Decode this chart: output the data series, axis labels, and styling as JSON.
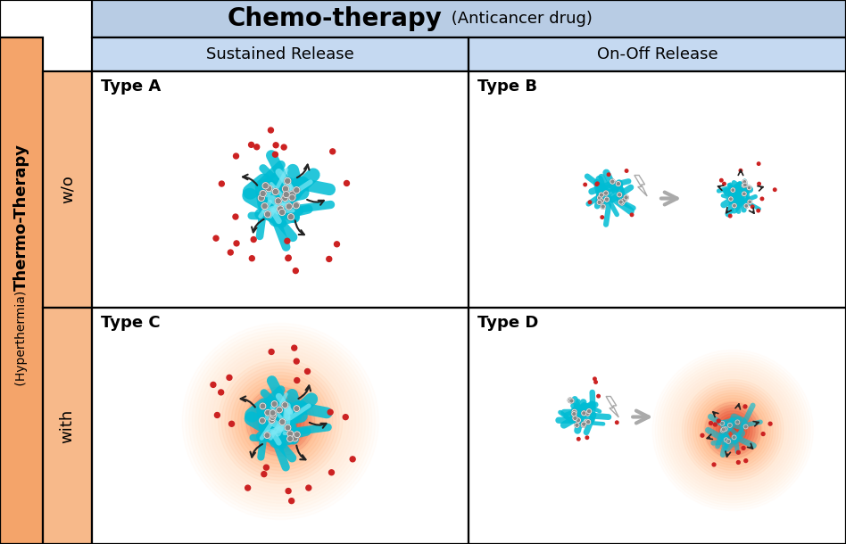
{
  "title_chemo": "Chemo-therapy",
  "title_chemo_sub": " (Anticancer drug)",
  "header_col1": "Sustained Release",
  "header_col2": "On-Off Release",
  "row1_label": "w/o",
  "row2_label": "with",
  "left_label_main": "Thermo-Therapy",
  "left_label_sub": " (Hyperthermia)",
  "type_labels": [
    "Type A",
    "Type B",
    "Type C",
    "Type D"
  ],
  "header_bg": "#b8cce4",
  "subheader_bg": "#c5d9f1",
  "left_col_bg": "#f4a460",
  "left_col_bg2": "#f4b07a",
  "fiber_color": "#00bcd4",
  "dot_color": "#cc2222",
  "nanoparticle_color": "#888888",
  "arrow_color": "#222222",
  "gray_arrow_color": "#888888",
  "heat_color_inner": "#dd0000",
  "heat_color_outer": "#ffddbb",
  "border_color": "#000000",
  "bg_color": "#ffffff",
  "figsize": [
    9.48,
    6.1
  ],
  "dpi": 100
}
